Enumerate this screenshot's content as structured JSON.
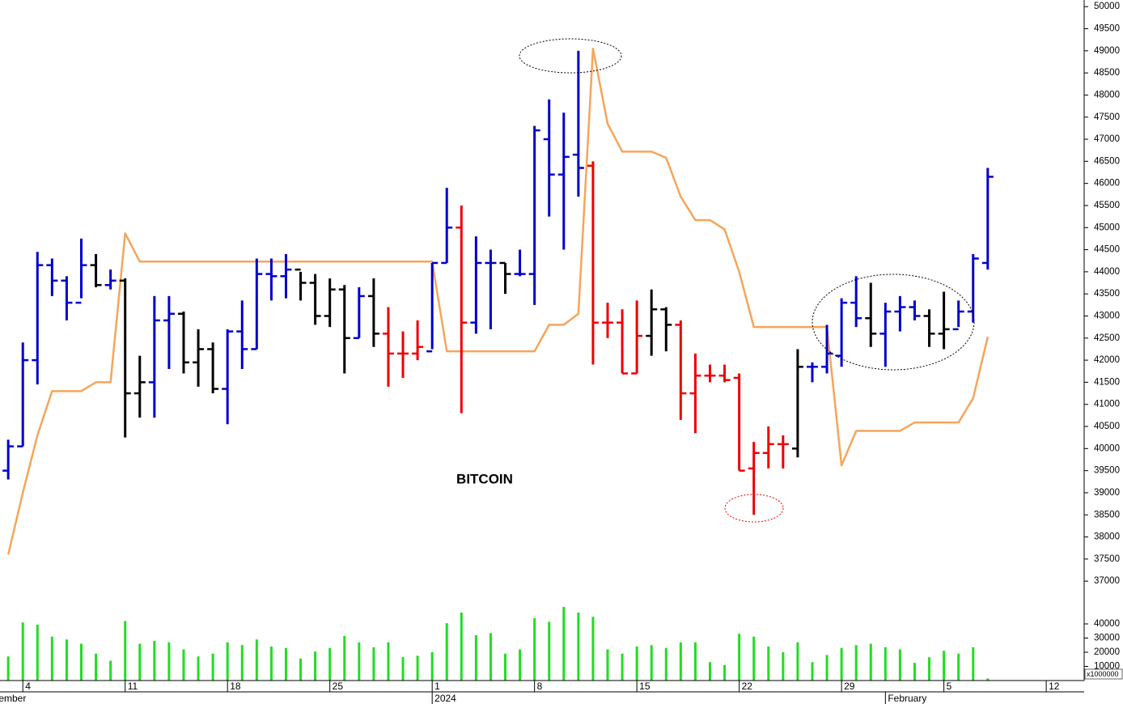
{
  "chart_data": {
    "type": "ohlc",
    "title": "BITCOIN",
    "categories": [
      null,
      null,
      null,
      "4",
      null,
      null,
      null,
      null,
      null,
      null,
      "11",
      null,
      null,
      null,
      null,
      null,
      null,
      "18",
      null,
      null,
      null,
      null,
      null,
      null,
      "25",
      null,
      null,
      null,
      null,
      null,
      null,
      "1",
      null,
      null,
      null,
      null,
      null,
      null,
      "8",
      null,
      null,
      null,
      null,
      null,
      null,
      "15",
      null,
      null,
      null,
      null,
      null,
      null,
      "22",
      null,
      null,
      null,
      null,
      null,
      null,
      "29",
      null,
      null,
      null,
      null,
      null,
      null,
      "5",
      null,
      null,
      null,
      null,
      null,
      null,
      "12"
    ],
    "month_labels": [
      "December",
      null,
      null,
      null,
      null,
      null,
      null,
      null,
      null,
      null,
      null,
      null,
      null,
      null,
      null,
      null,
      null,
      null,
      null,
      null,
      null,
      null,
      null,
      null,
      null,
      null,
      null,
      null,
      null,
      null,
      null,
      "2024",
      null,
      null,
      null,
      null,
      null,
      null,
      null,
      null,
      null,
      null,
      null,
      null,
      null,
      null,
      null,
      null,
      null,
      null,
      null,
      null,
      null,
      null,
      null,
      null,
      null,
      null,
      null,
      null,
      null,
      null,
      "February",
      null,
      null,
      null,
      null,
      null,
      null,
      null,
      null,
      null,
      null,
      null
    ],
    "open": [
      null,
      null,
      39500,
      40050,
      42000,
      44150,
      43800,
      43300,
      44150,
      43700,
      43800,
      41250,
      41500,
      42900,
      43050,
      41950,
      42250,
      41350,
      42650,
      42250,
      43950,
      43900,
      44050,
      43750,
      43000,
      43600,
      42500,
      43450,
      42600,
      42150,
      42150,
      42200,
      44200,
      45000,
      42850,
      44200,
      44200,
      43950,
      43950,
      47000,
      46200,
      46650,
      46400,
      42850,
      42850,
      41700,
      42550,
      43150,
      42800,
      41250,
      41650,
      41650,
      41600,
      39550,
      39900,
      40100,
      40000,
      41850,
      41850,
      42100,
      43300,
      42950,
      42600,
      43100,
      43200,
      43000,
      42600,
      42700,
      43100,
      44200,
      null,
      null,
      null,
      null
    ],
    "high": [
      null,
      null,
      40200,
      42400,
      44450,
      44300,
      43900,
      44750,
      44400,
      44050,
      43850,
      42100,
      43450,
      43450,
      43100,
      42700,
      42400,
      42700,
      43350,
      44300,
      44300,
      44400,
      44000,
      43950,
      43850,
      43700,
      43650,
      43850,
      43200,
      42650,
      42900,
      44200,
      45900,
      45500,
      44800,
      44500,
      44200,
      44500,
      47300,
      47900,
      47600,
      49000,
      46500,
      43300,
      43150,
      43350,
      43600,
      43200,
      42900,
      42150,
      41900,
      41900,
      41700,
      40150,
      40500,
      40300,
      42250,
      41950,
      42800,
      43400,
      43900,
      43750,
      43300,
      43450,
      43350,
      43150,
      43550,
      43350,
      44400,
      46350,
      null,
      null,
      null,
      null
    ],
    "low": [
      null,
      null,
      39300,
      40050,
      41450,
      43450,
      42900,
      43400,
      43650,
      43600,
      40250,
      40700,
      40700,
      41800,
      41700,
      41400,
      41250,
      40550,
      41800,
      42250,
      43350,
      43400,
      43350,
      42800,
      42750,
      41700,
      42500,
      42300,
      41400,
      41600,
      42000,
      42250,
      44200,
      40800,
      42600,
      42700,
      43500,
      43900,
      43250,
      45250,
      44500,
      45700,
      41900,
      42500,
      41700,
      41700,
      42100,
      42200,
      40650,
      40350,
      41500,
      41500,
      39500,
      38500,
      39550,
      39550,
      39800,
      41500,
      41700,
      41850,
      42750,
      42300,
      41850,
      42650,
      42900,
      42300,
      42250,
      42750,
      42850,
      44050,
      null,
      null,
      null,
      null
    ],
    "close": [
      null,
      null,
      40050,
      42000,
      44150,
      43800,
      43300,
      44150,
      43700,
      43800,
      41250,
      41500,
      42900,
      43050,
      41950,
      42250,
      41350,
      42650,
      42250,
      43950,
      43900,
      44050,
      43750,
      43000,
      43600,
      42500,
      43450,
      42600,
      42150,
      42150,
      42300,
      44200,
      45000,
      42850,
      44200,
      44200,
      43950,
      43950,
      47200,
      46200,
      46600,
      46350,
      42850,
      42850,
      41700,
      42550,
      43150,
      42800,
      41250,
      41650,
      41650,
      41550,
      39500,
      39900,
      40100,
      40100,
      41850,
      41850,
      42150,
      43300,
      42950,
      42600,
      43100,
      43200,
      43000,
      42600,
      42700,
      43100,
      44300,
      46150,
      null,
      null,
      null,
      null
    ],
    "colors": [
      null,
      null,
      "#0000cc",
      "#0000cc",
      "#0000cc",
      "#0000cc",
      "#0000cc",
      "#0000cc",
      "#000000",
      "#0000cc",
      "#000000",
      "#000000",
      "#0000cc",
      "#0000cc",
      "#000000",
      "#000000",
      "#000000",
      "#0000cc",
      "#0000cc",
      "#0000cc",
      "#0000cc",
      "#0000cc",
      "#000000",
      "#000000",
      "#000000",
      "#000000",
      "#0000cc",
      "#000000",
      "#ee0000",
      "#ee0000",
      "#ee0000",
      "#0000cc",
      "#0000cc",
      "#ee0000",
      "#0000cc",
      "#0000cc",
      "#000000",
      "#0000cc",
      "#0000cc",
      "#0000cc",
      "#0000cc",
      "#0000cc",
      "#ee0000",
      "#ee0000",
      "#ee0000",
      "#ee0000",
      "#000000",
      "#000000",
      "#ee0000",
      "#ee0000",
      "#ee0000",
      "#ee0000",
      "#ee0000",
      "#ee0000",
      "#ee0000",
      "#ee0000",
      "#000000",
      "#0000cc",
      "#0000cc",
      "#0000cc",
      "#0000cc",
      "#000000",
      "#0000cc",
      "#0000cc",
      "#0000cc",
      "#000000",
      "#000000",
      "#0000cc",
      "#0000cc",
      "#0000cc",
      null,
      null,
      null,
      null
    ],
    "overlay": {
      "color": "#f5a55a",
      "values": [
        null,
        null,
        37600,
        39000,
        40300,
        41300,
        41300,
        41300,
        41500,
        41500,
        44870,
        44230,
        44230,
        44230,
        44230,
        44230,
        44230,
        44230,
        44230,
        44230,
        44230,
        44230,
        44230,
        44230,
        44230,
        44230,
        44230,
        44230,
        44230,
        44230,
        44230,
        44230,
        42200,
        42200,
        42200,
        42200,
        42200,
        42200,
        42200,
        42800,
        42800,
        43050,
        49050,
        47350,
        46720,
        46720,
        46720,
        46580,
        45700,
        45170,
        45170,
        44960,
        44000,
        42750,
        42750,
        42750,
        42750,
        42750,
        42750,
        39620,
        40400,
        40400,
        40400,
        40400,
        40590,
        40590,
        40590,
        40590,
        41140,
        42530,
        null,
        null,
        null,
        null
      ]
    },
    "ylim": [
      36600,
      50150
    ],
    "yticks": [
      37000,
      37500,
      38000,
      38500,
      39000,
      39500,
      40000,
      40500,
      41000,
      41500,
      42000,
      42500,
      43000,
      43500,
      44000,
      44500,
      45000,
      45500,
      46000,
      46500,
      47000,
      47500,
      48000,
      48500,
      49000,
      49500,
      50000
    ],
    "volume": {
      "color": "#22dd22",
      "unit_label": "x1000000",
      "ylim": [
        0,
        52000
      ],
      "yticks": [
        10000,
        20000,
        30000,
        40000
      ],
      "values": [
        null,
        null,
        17000,
        41000,
        39500,
        31000,
        29000,
        26000,
        19000,
        14000,
        42000,
        26000,
        28000,
        27000,
        22000,
        17000,
        19000,
        27000,
        25000,
        29000,
        24000,
        23000,
        15500,
        20500,
        23000,
        31500,
        27000,
        23500,
        27000,
        16500,
        17500,
        20000,
        40500,
        48000,
        32000,
        33500,
        19000,
        22000,
        44000,
        41500,
        52000,
        48000,
        45000,
        22000,
        19000,
        24000,
        25000,
        23000,
        27000,
        27000,
        13000,
        11000,
        33000,
        31000,
        24000,
        20000,
        27000,
        13000,
        18000,
        23000,
        25000,
        26000,
        23500,
        22000,
        12500,
        16500,
        21000,
        19000,
        23500,
        1500,
        null,
        null,
        null,
        null
      ]
    }
  }
}
